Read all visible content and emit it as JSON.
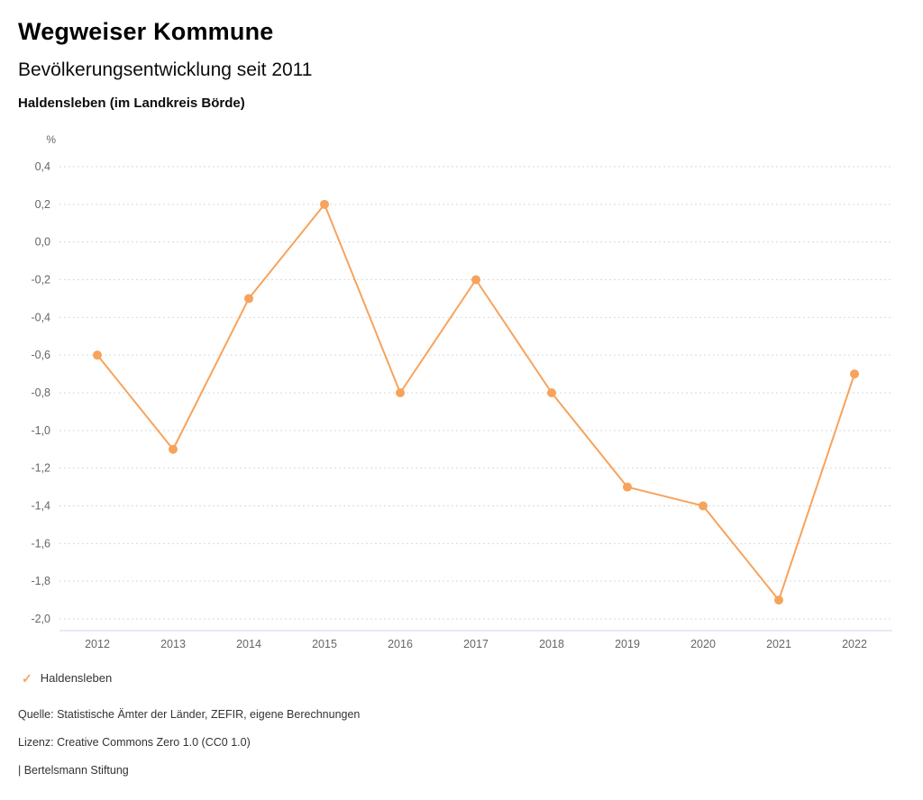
{
  "header": {
    "title": "Wegweiser Kommune",
    "subtitle": "Bevölkerungsentwicklung seit 2011",
    "region": "Haldensleben (im Landkreis Börde)"
  },
  "chart_data": {
    "type": "line",
    "title": "Bevölkerungsentwicklung seit 2011",
    "unit_label": "%",
    "categories": [
      "2012",
      "2013",
      "2014",
      "2015",
      "2016",
      "2017",
      "2018",
      "2019",
      "2020",
      "2021",
      "2022"
    ],
    "series": [
      {
        "name": "Haldensleben",
        "color": "#f7a35c",
        "values": [
          -0.6,
          -1.1,
          -0.3,
          0.2,
          -0.8,
          -0.2,
          -0.8,
          -1.3,
          -1.4,
          -1.9,
          -0.7
        ]
      }
    ],
    "ylim": [
      -2.0,
      0.4
    ],
    "ytick_step": 0.2,
    "grid": true,
    "grid_style": "dotted",
    "legend_position": "bottom",
    "decimal_separator": ","
  },
  "legend": {
    "check_icon": "✓",
    "items": [
      {
        "label": "Haldensleben",
        "color": "#f7a35c"
      }
    ]
  },
  "footer": {
    "source": "Quelle: Statistische Ämter der Länder, ZEFIR, eigene Berechnungen",
    "license": "Lizenz: Creative Commons Zero 1.0 (CC0 1.0)",
    "attribution": "| Bertelsmann Stiftung"
  },
  "colors": {
    "series_orange": "#f7a35c",
    "gridline": "#d9d9d9",
    "axis_line": "#ccd6eb",
    "tick_text": "#666666"
  }
}
